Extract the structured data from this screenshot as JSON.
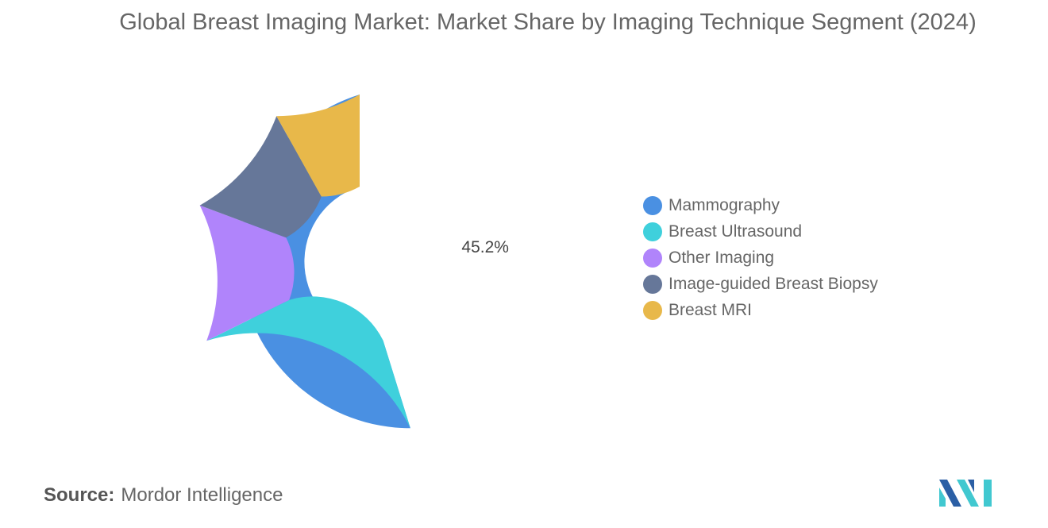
{
  "chart_data": {
    "type": "pie",
    "variant": "donut",
    "title": "Global Breast Imaging Market: Market Share by Imaging Technique Segment (2024)",
    "legend_position": "right",
    "slices": [
      {
        "label": "Mammography",
        "value": 45.2,
        "color": "#4a90e2",
        "data_label": "45.2%"
      },
      {
        "label": "Breast Ultrasound",
        "value": 22.5,
        "color": "#3fd0dc"
      },
      {
        "label": "Other Imaging",
        "value": 13.0,
        "color": "#b084fb"
      },
      {
        "label": "Image-guided Breast Biopsy",
        "value": 11.2,
        "color": "#667799"
      },
      {
        "label": "Breast MRI",
        "value": 8.1,
        "color": "#e8b84a"
      }
    ],
    "start_angle_deg": 90,
    "direction": "counterclockwise"
  },
  "source": {
    "label": "Source:",
    "value": "Mordor Intelligence"
  },
  "logo": {
    "icon": "mordor-intelligence-logo-icon",
    "colors": [
      "#2b5fa5",
      "#41c8d0"
    ]
  }
}
